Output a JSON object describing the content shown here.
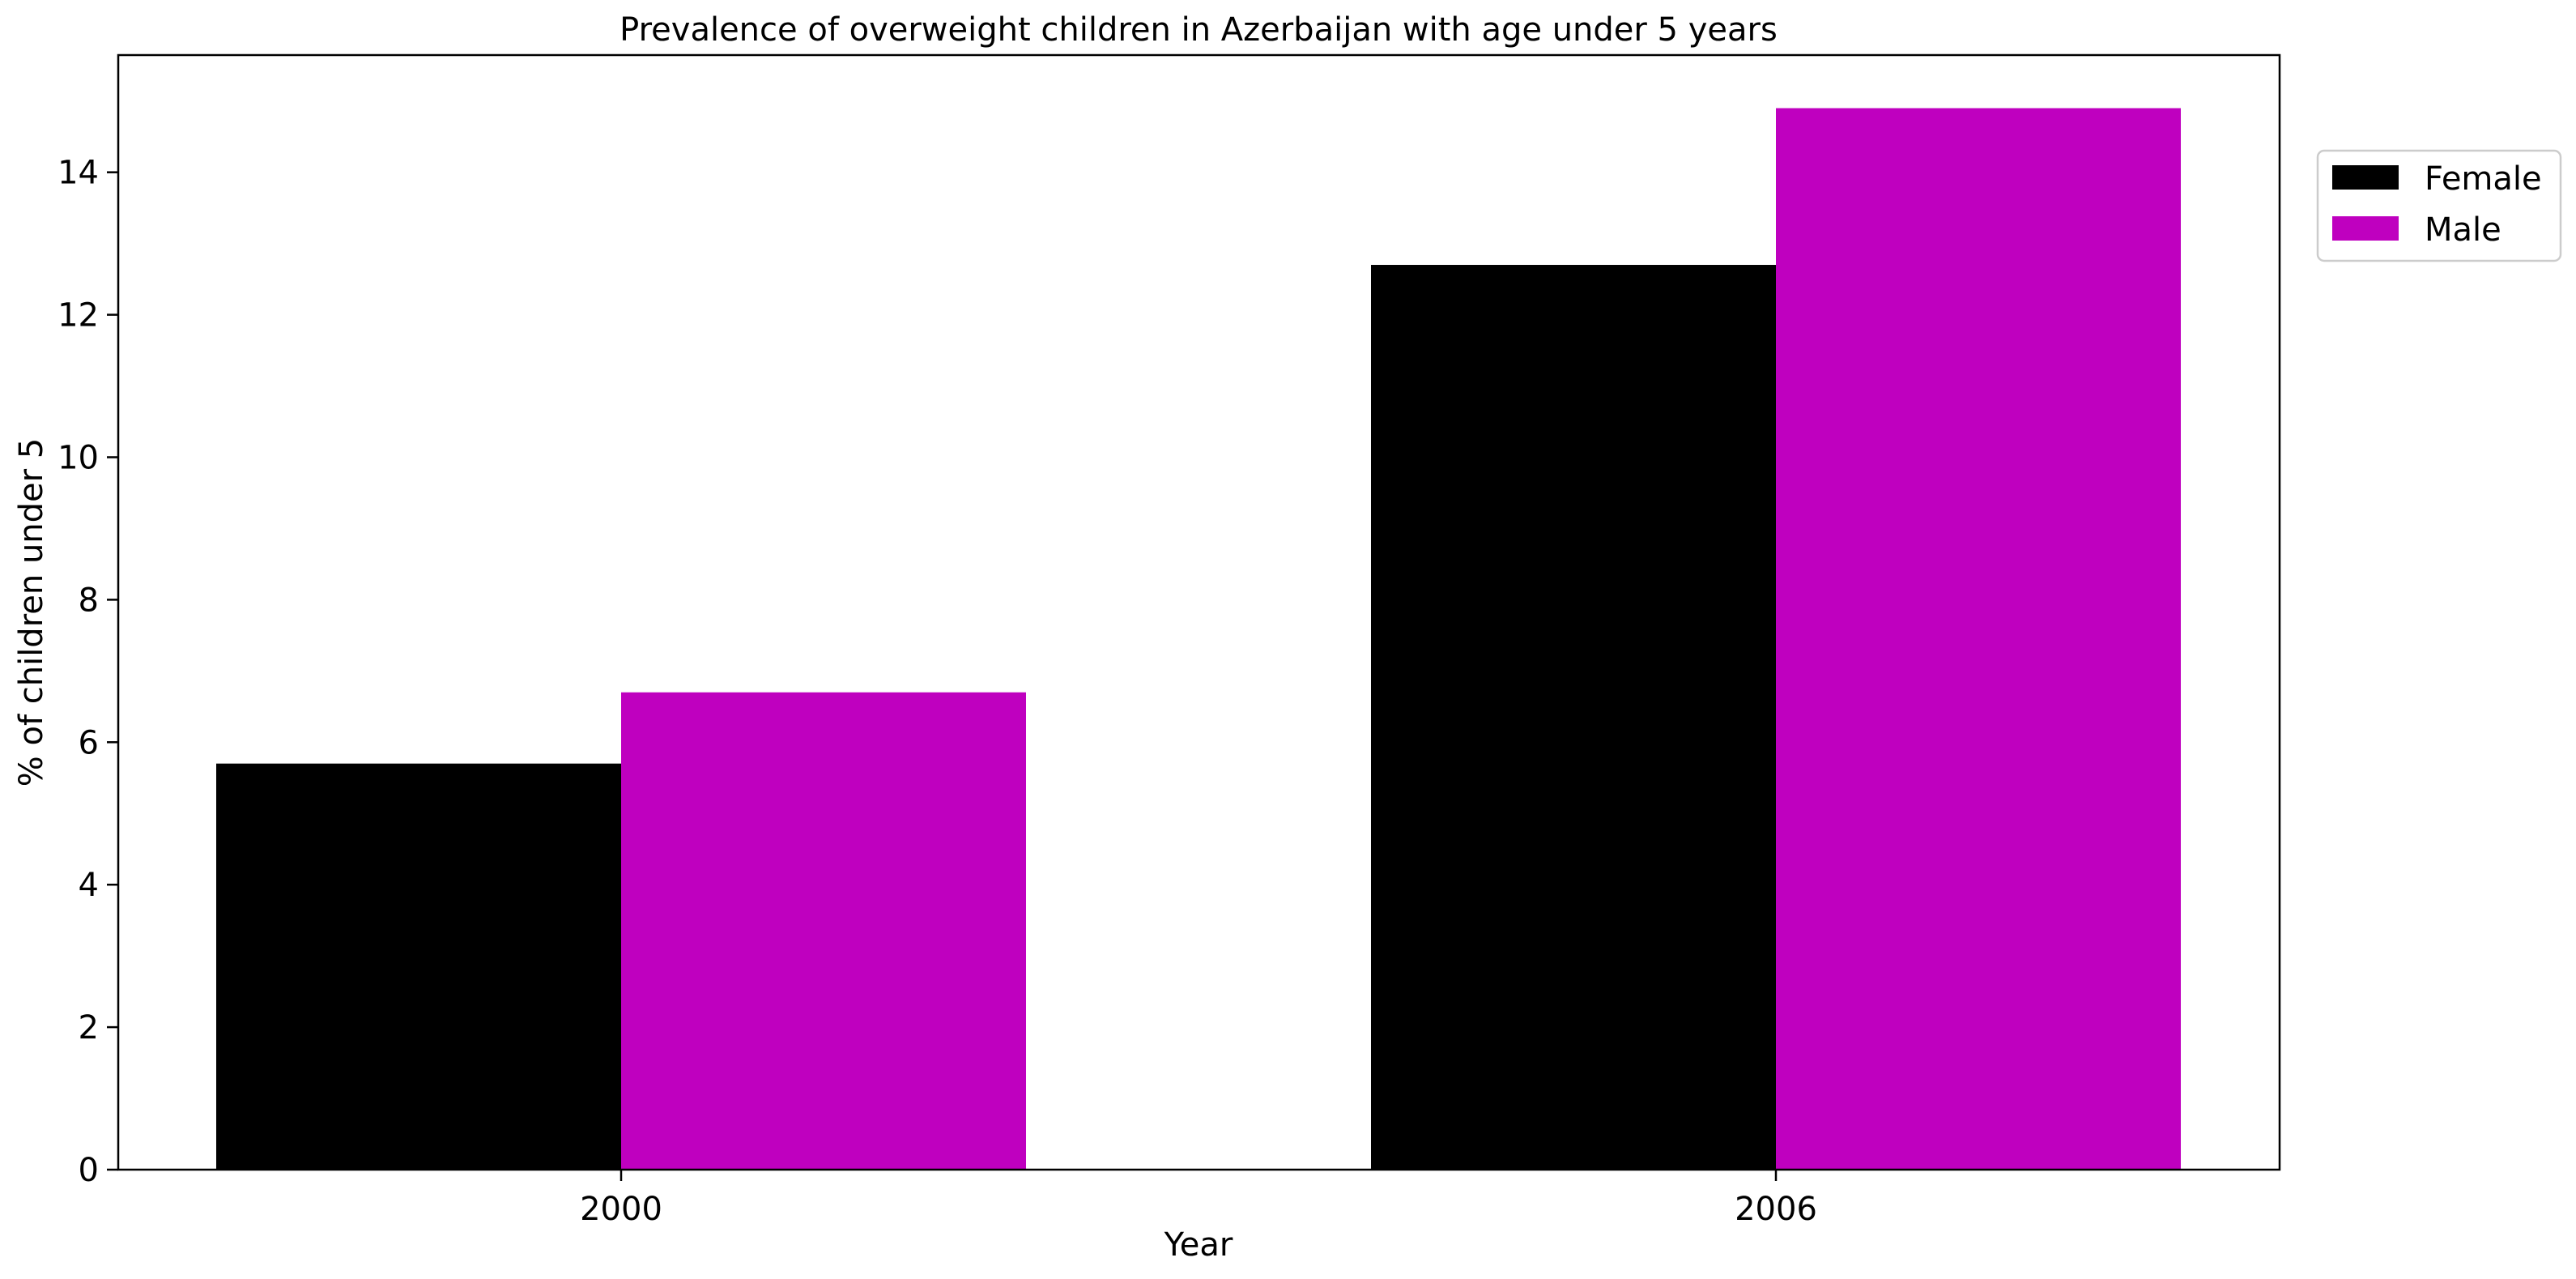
{
  "chart_data": {
    "type": "bar",
    "title": "Prevalence of overweight children in Azerbaijan with age under 5 years",
    "xlabel": "Year",
    "ylabel": "% of children under 5",
    "categories": [
      "2000",
      "2006"
    ],
    "series": [
      {
        "name": "Female",
        "values": [
          5.7,
          12.7
        ],
        "color": "#000000"
      },
      {
        "name": "Male",
        "values": [
          6.7,
          14.9
        ],
        "color": "#bf00bf"
      }
    ],
    "ylim": [
      0,
      15.645
    ],
    "yticks": [
      0,
      2,
      4,
      6,
      8,
      10,
      12,
      14
    ],
    "legend_position": "top-right, outside plot",
    "grid": false
  }
}
